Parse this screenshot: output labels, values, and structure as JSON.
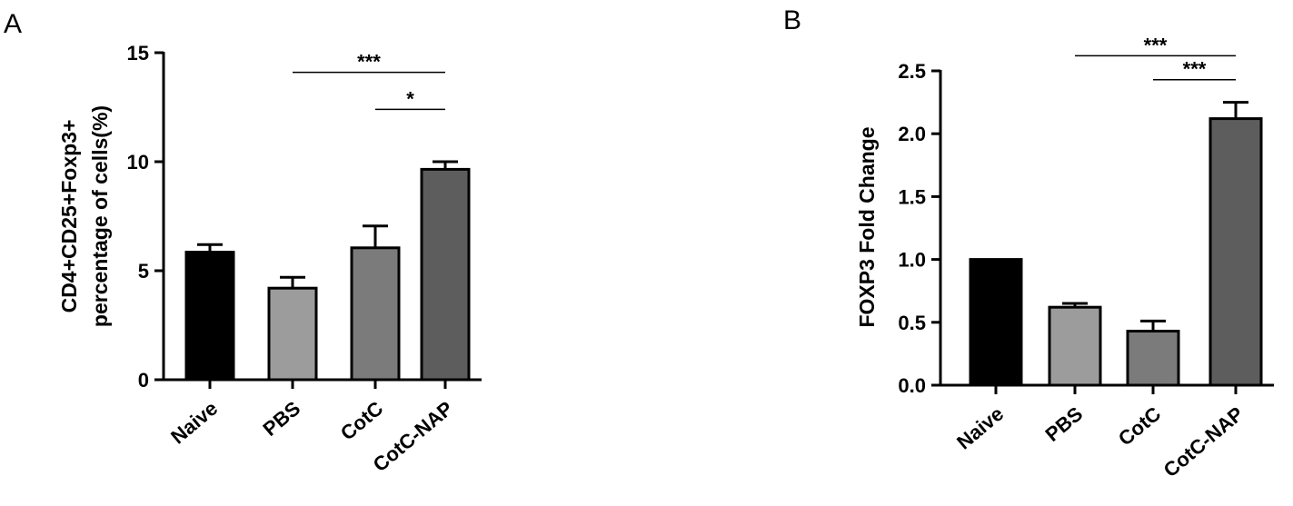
{
  "chart_data": [
    {
      "panel_label": "A",
      "type": "bar",
      "categories": [
        "Naive",
        "PBS",
        "CotC",
        "CotC-NAP"
      ],
      "values": [
        5.85,
        4.2,
        6.05,
        9.65
      ],
      "errors": [
        0.35,
        0.5,
        1.0,
        0.35
      ],
      "bar_colors": [
        "#000000",
        "#9c9c9c",
        "#7b7b7b",
        "#5d5d5d"
      ],
      "title": "",
      "xlabel": "",
      "ylabel_lines": [
        "CD4+CD25+Foxp3+",
        "percentage of cells(%)"
      ],
      "ylim": [
        0,
        15
      ],
      "yticks": [
        0,
        5,
        10,
        15
      ],
      "ytick_labels": [
        "0",
        "5",
        "10",
        "15"
      ],
      "grid": false,
      "significance": [
        {
          "from": 1,
          "to": 3,
          "label": "***",
          "y": 14.1
        },
        {
          "from": 2,
          "to": 3,
          "label": "*",
          "y": 12.4
        }
      ]
    },
    {
      "panel_label": "B",
      "type": "bar",
      "categories": [
        "Naive",
        "PBS",
        "CotC",
        "CotC-NAP"
      ],
      "values": [
        1.0,
        0.62,
        0.43,
        2.12
      ],
      "errors": [
        0.0,
        0.03,
        0.08,
        0.13
      ],
      "bar_colors": [
        "#000000",
        "#9c9c9c",
        "#7b7b7b",
        "#5d5d5d"
      ],
      "title": "",
      "xlabel": "",
      "ylabel_lines": [
        "FOXP3 Fold Change"
      ],
      "ylim": [
        0,
        2.5
      ],
      "yticks": [
        0,
        0.5,
        1.0,
        1.5,
        2.0,
        2.5
      ],
      "ytick_labels": [
        "0.0",
        "0.5",
        "1.0",
        "1.5",
        "2.0",
        "2.5"
      ],
      "grid": false,
      "significance": [
        {
          "from": 1,
          "to": 3,
          "label": "***",
          "y": 2.62
        },
        {
          "from": 2,
          "to": 3,
          "label": "***",
          "y": 2.43
        }
      ]
    }
  ]
}
